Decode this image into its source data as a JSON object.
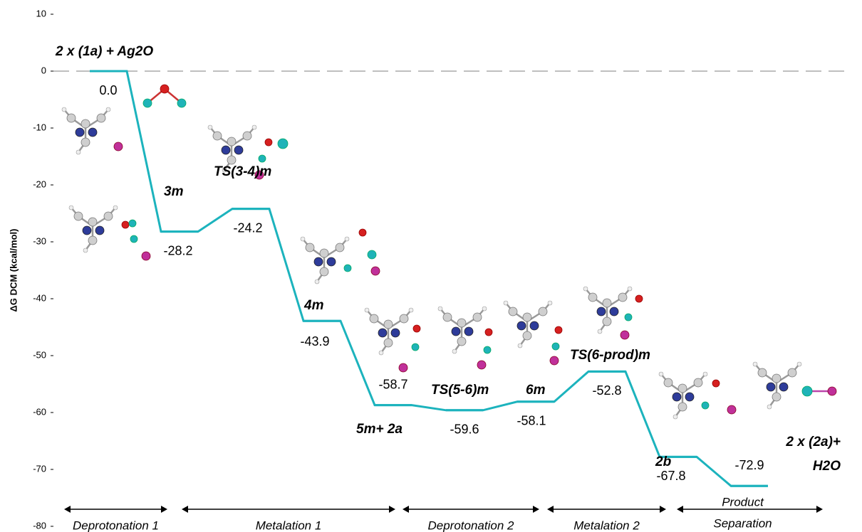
{
  "chart_data": {
    "type": "energy-profile",
    "y_axis_label": "ΔG DCM (kcal/mol)",
    "categories": [
      [
        "2 x (1a) + Ag2O"
      ],
      [
        "3m"
      ],
      [
        "TS(3-4)m"
      ],
      [
        "4m"
      ],
      [
        "5m+ 2a"
      ],
      [
        "TS(5-6)m"
      ],
      [
        "6m"
      ],
      [
        "TS(6-prod)m"
      ],
      [
        "2b"
      ],
      [
        "2 x (2a)+",
        "H2O"
      ]
    ],
    "values": [
      0,
      -28.2,
      -24.2,
      -43.9,
      -58.7,
      -59.6,
      -58.1,
      -52.8,
      -67.8,
      -72.9
    ],
    "value_labels": [
      "0.0",
      "-28.2",
      "-24.2",
      "-43.9",
      "-58.7",
      "-59.6",
      "-58.1",
      "-52.8",
      "-67.8",
      "-72.9"
    ],
    "color": "#1cb3bd",
    "ylim": [
      -80,
      10
    ],
    "yticks": [
      -80,
      -70,
      -60,
      -50,
      -40,
      -30,
      -20,
      -10,
      0,
      10
    ],
    "reference_line": 0,
    "stages": [
      [
        "Deprotonation 1"
      ],
      [
        "Metalation 1"
      ],
      [
        "Deprotonation 2"
      ],
      [
        "Metalation 2"
      ],
      [
        "Product",
        "Separation"
      ]
    ]
  }
}
